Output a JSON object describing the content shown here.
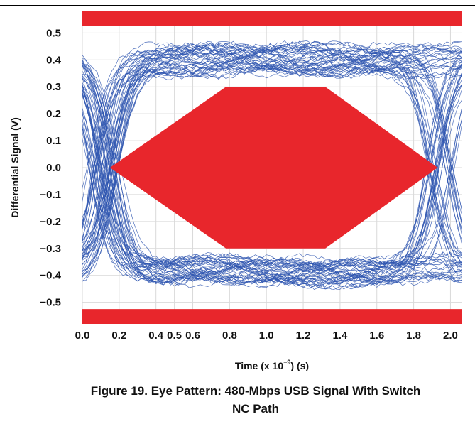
{
  "chart_data": {
    "type": "line",
    "title": "",
    "xlabel": "Time (x 10",
    "xlabel_exp": "−9",
    "xlabel_suffix": ") (s)",
    "ylabel": "Differential Signal (V)",
    "xlim": [
      0.0,
      2.06
    ],
    "ylim": [
      -0.58,
      0.58
    ],
    "grid": true,
    "x_ticks": [
      0.0,
      0.2,
      0.4,
      0.5,
      0.6,
      0.8,
      1.0,
      1.2,
      1.4,
      1.6,
      1.8,
      2.0
    ],
    "x_tick_labels": [
      "0.0",
      "0.2",
      "0.4",
      "0.5",
      "0.6",
      "0.8",
      "1.0",
      "1.2",
      "1.4",
      "1.6",
      "1.8",
      "2.0"
    ],
    "y_ticks": [
      0.5,
      0.4,
      0.3,
      0.2,
      0.1,
      0.0,
      -0.1,
      -0.2,
      -0.3,
      -0.4,
      -0.5
    ],
    "y_tick_labels": [
      "0.5",
      "0.4",
      "0.3",
      "0.2",
      "0.1",
      "0.0",
      "−0.1",
      "−0.2",
      "−0.3",
      "−0.4",
      "−0.5"
    ],
    "colors": {
      "traces": "#2f56b0",
      "mask": "#e8262c",
      "grid": "#d9d9d9"
    },
    "mask": {
      "upper_band": [
        0.525,
        0.58
      ],
      "lower_band": [
        -0.58,
        -0.525
      ],
      "center_polygon": [
        [
          0.15,
          0.0
        ],
        [
          0.78,
          0.3
        ],
        [
          1.32,
          0.3
        ],
        [
          1.93,
          0.0
        ],
        [
          1.32,
          -0.3
        ],
        [
          0.78,
          -0.3
        ]
      ]
    },
    "eye": {
      "high_level": 0.4,
      "low_level": -0.385,
      "crossing_times": [
        0.0,
        2.06
      ],
      "trace_count": 90
    }
  },
  "caption": {
    "line1": "Figure 19. Eye Pattern: 480-Mbps USB Signal With Switch",
    "line2": "NC Path"
  }
}
